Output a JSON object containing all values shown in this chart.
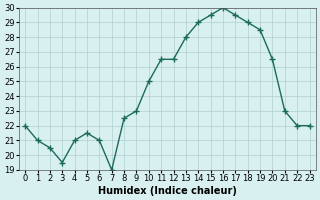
{
  "x": [
    0,
    1,
    2,
    3,
    4,
    5,
    6,
    7,
    8,
    9,
    10,
    11,
    12,
    13,
    14,
    15,
    16,
    17,
    18,
    19,
    20,
    21,
    22,
    23
  ],
  "y": [
    22,
    21,
    20.5,
    19.5,
    21,
    21.5,
    21,
    19,
    22.5,
    23,
    25,
    26.5,
    26.5,
    28,
    29,
    29.5,
    30,
    29.5,
    29,
    28.5,
    26.5,
    23,
    22,
    22
  ],
  "xlabel": "Humidex (Indice chaleur)",
  "ylabel": "",
  "xlim": [
    -0.5,
    23.5
  ],
  "ylim": [
    19,
    30
  ],
  "yticks": [
    19,
    20,
    21,
    22,
    23,
    24,
    25,
    26,
    27,
    28,
    29,
    30
  ],
  "xticks": [
    0,
    1,
    2,
    3,
    4,
    5,
    6,
    7,
    8,
    9,
    10,
    11,
    12,
    13,
    14,
    15,
    16,
    17,
    18,
    19,
    20,
    21,
    22,
    23
  ],
  "line_color": "#1a6b5a",
  "marker": "+",
  "bg_color": "#d9f0f0",
  "grid_color": "#b0d0d0",
  "title_fontsize": 7,
  "label_fontsize": 7,
  "tick_fontsize": 6
}
